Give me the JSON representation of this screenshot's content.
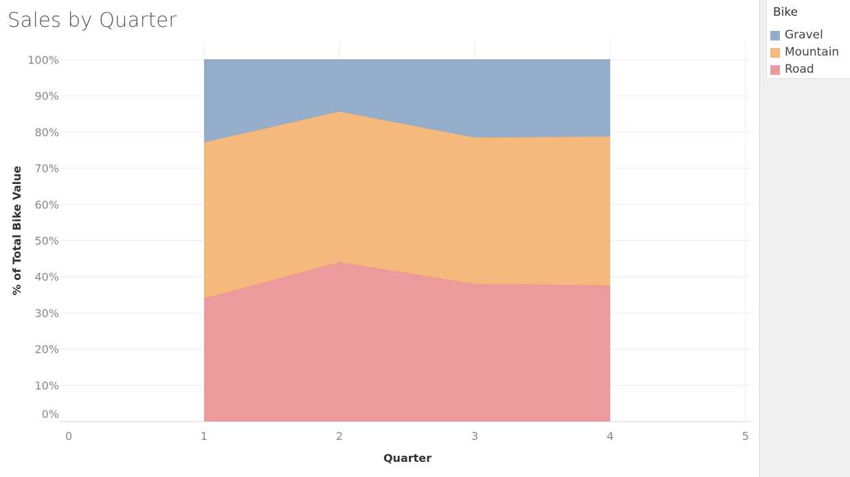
{
  "chart_data": {
    "type": "area",
    "stacked": true,
    "normalized": true,
    "title": "Sales by Quarter",
    "xlabel": "Quarter",
    "ylabel": "% of Total Bike Value",
    "x": [
      1,
      2,
      3,
      4
    ],
    "xlim": [
      0,
      5
    ],
    "xticks": [
      "0",
      "1",
      "2",
      "3",
      "4",
      "5"
    ],
    "ylim": [
      0,
      100
    ],
    "yticks": [
      "0%",
      "10%",
      "20%",
      "30%",
      "40%",
      "50%",
      "60%",
      "70%",
      "80%",
      "90%",
      "100%"
    ],
    "grid": true,
    "legend_placement": "right",
    "legend_title": "Bike",
    "series": [
      {
        "name": "Road",
        "values": [
          34,
          44,
          38,
          37.6
        ],
        "color": "#ec9a9b",
        "line": "#f08e80"
      },
      {
        "name": "Mountain",
        "values": [
          43.2,
          41.7,
          40.5,
          41.2
        ],
        "color": "#f5b97e",
        "line": "#e3a878"
      },
      {
        "name": "Gravel",
        "values": [
          22.8,
          14.3,
          21.5,
          21.2
        ],
        "color": "#93adca",
        "line": "#7f94ad"
      }
    ]
  },
  "legend": {
    "title": "Bike",
    "items": [
      {
        "label": "Gravel",
        "color": "#93adca"
      },
      {
        "label": "Mountain",
        "color": "#f5b97e"
      },
      {
        "label": "Road",
        "color": "#ec9a9b"
      }
    ]
  }
}
